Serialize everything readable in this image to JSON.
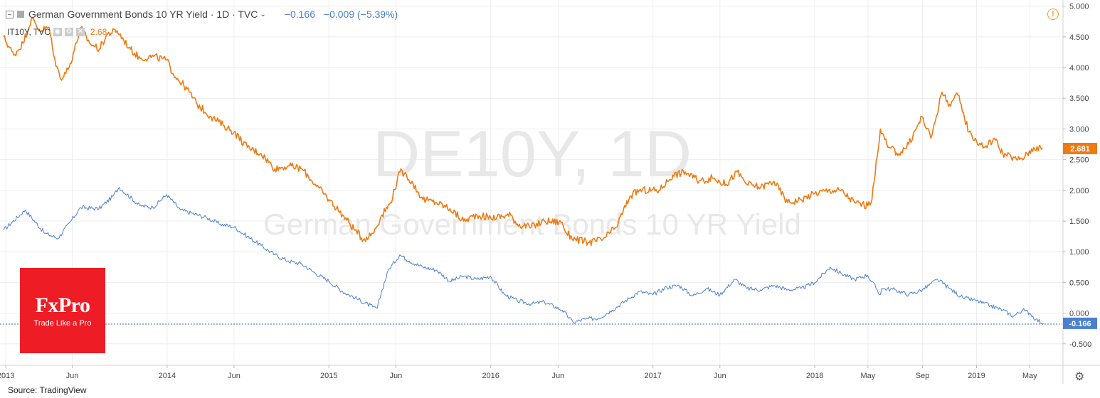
{
  "legend": {
    "main_title": "German Government Bonds 10 YR Yield · 1D · TVC",
    "main_close": "−0.166",
    "main_change": "−0.009 (−5.39%)",
    "compare_symbol": "IT10Y, TVC",
    "compare_value": "2.68"
  },
  "watermark": {
    "symbol": "DE10Y, 1D",
    "description": "German Government Bonds 10 YR Yield"
  },
  "logo": {
    "name": "FxPro",
    "tagline": "Trade Like a Pro"
  },
  "source": "Source: TradingView",
  "icons": {
    "warning": "warning-icon",
    "settings": "gear-icon",
    "collapse": "collapse-icon"
  },
  "colors": {
    "de10y": "#4a7fd4",
    "it10y": "#f07a12",
    "logo_bg": "#ee1c25"
  },
  "chart_data": {
    "type": "line",
    "x_ticks": [
      {
        "date": "2013-01-02",
        "label": "2013"
      },
      {
        "date": "2013-06-01",
        "label": "Jun"
      },
      {
        "date": "2014-01-01",
        "label": "2014"
      },
      {
        "date": "2014-06-01",
        "label": "Jun"
      },
      {
        "date": "2015-01-01",
        "label": "2015"
      },
      {
        "date": "2015-06-01",
        "label": "Jun"
      },
      {
        "date": "2016-01-01",
        "label": "2016"
      },
      {
        "date": "2016-06-01",
        "label": "Jun"
      },
      {
        "date": "2017-01-01",
        "label": "2017"
      },
      {
        "date": "2017-06-01",
        "label": "Jun"
      },
      {
        "date": "2018-01-01",
        "label": "2018"
      },
      {
        "date": "2018-05-01",
        "label": "May"
      },
      {
        "date": "2018-09-01",
        "label": "Sep"
      },
      {
        "date": "2019-01-01",
        "label": "2019"
      },
      {
        "date": "2019-05-01",
        "label": "May"
      }
    ],
    "y_ticks": [
      {
        "value": 5.0,
        "label": "5.000"
      },
      {
        "value": 4.5,
        "label": "4.500"
      },
      {
        "value": 4.0,
        "label": "4.000"
      },
      {
        "value": 3.5,
        "label": "3.500"
      },
      {
        "value": 3.0,
        "label": "3.000"
      },
      {
        "value": 2.5,
        "label": "2.500"
      },
      {
        "value": 2.0,
        "label": "2.000"
      },
      {
        "value": 1.5,
        "label": "1.500"
      },
      {
        "value": 1.0,
        "label": "1.000"
      },
      {
        "value": 0.5,
        "label": "0.500"
      },
      {
        "value": 0.0,
        "label": "0.000"
      },
      {
        "value": -0.5,
        "label": "-0.500"
      }
    ],
    "ylim": [
      -0.85,
      5.1
    ],
    "xlim": [
      "2012-12-20",
      "2019-07-15"
    ],
    "grid": true,
    "series": [
      {
        "name": "DE10Y",
        "color": "#4a7fd4",
        "last_value": -0.166,
        "last_label": "-0.166",
        "points": [
          [
            "2012-12-28",
            1.35
          ],
          [
            "2013-02-15",
            1.68
          ],
          [
            "2013-03-31",
            1.3
          ],
          [
            "2013-04-30",
            1.22
          ],
          [
            "2013-05-31",
            1.52
          ],
          [
            "2013-06-20",
            1.72
          ],
          [
            "2013-07-31",
            1.7
          ],
          [
            "2013-08-31",
            1.9
          ],
          [
            "2013-09-15",
            2.05
          ],
          [
            "2013-10-31",
            1.75
          ],
          [
            "2013-11-30",
            1.72
          ],
          [
            "2013-12-31",
            1.93
          ],
          [
            "2014-01-31",
            1.68
          ],
          [
            "2014-03-01",
            1.62
          ],
          [
            "2014-04-01",
            1.55
          ],
          [
            "2014-05-01",
            1.45
          ],
          [
            "2014-06-01",
            1.4
          ],
          [
            "2014-07-01",
            1.25
          ],
          [
            "2014-08-01",
            1.1
          ],
          [
            "2014-09-01",
            0.95
          ],
          [
            "2014-10-01",
            0.85
          ],
          [
            "2014-11-01",
            0.8
          ],
          [
            "2014-12-01",
            0.65
          ],
          [
            "2015-01-01",
            0.52
          ],
          [
            "2015-02-01",
            0.35
          ],
          [
            "2015-03-01",
            0.25
          ],
          [
            "2015-04-10",
            0.1
          ],
          [
            "2015-04-20",
            0.08
          ],
          [
            "2015-05-01",
            0.38
          ],
          [
            "2015-05-15",
            0.7
          ],
          [
            "2015-06-10",
            0.95
          ],
          [
            "2015-07-01",
            0.85
          ],
          [
            "2015-08-01",
            0.75
          ],
          [
            "2015-09-01",
            0.7
          ],
          [
            "2015-10-01",
            0.52
          ],
          [
            "2015-11-01",
            0.6
          ],
          [
            "2015-12-01",
            0.55
          ],
          [
            "2016-01-01",
            0.6
          ],
          [
            "2016-02-01",
            0.3
          ],
          [
            "2016-03-01",
            0.2
          ],
          [
            "2016-04-01",
            0.15
          ],
          [
            "2016-05-01",
            0.18
          ],
          [
            "2016-06-10",
            0.05
          ],
          [
            "2016-07-05",
            -0.15
          ],
          [
            "2016-08-01",
            -0.1
          ],
          [
            "2016-09-01",
            -0.08
          ],
          [
            "2016-10-01",
            0.05
          ],
          [
            "2016-11-10",
            0.25
          ],
          [
            "2016-12-01",
            0.35
          ],
          [
            "2017-01-01",
            0.3
          ],
          [
            "2017-02-01",
            0.42
          ],
          [
            "2017-03-01",
            0.45
          ],
          [
            "2017-04-01",
            0.28
          ],
          [
            "2017-05-01",
            0.4
          ],
          [
            "2017-06-01",
            0.3
          ],
          [
            "2017-07-05",
            0.55
          ],
          [
            "2017-08-01",
            0.4
          ],
          [
            "2017-09-01",
            0.38
          ],
          [
            "2017-10-01",
            0.45
          ],
          [
            "2017-11-01",
            0.38
          ],
          [
            "2017-12-01",
            0.4
          ],
          [
            "2018-01-01",
            0.5
          ],
          [
            "2018-02-05",
            0.75
          ],
          [
            "2018-03-01",
            0.65
          ],
          [
            "2018-04-01",
            0.55
          ],
          [
            "2018-04-30",
            0.62
          ],
          [
            "2018-05-29",
            0.3
          ],
          [
            "2018-06-01",
            0.4
          ],
          [
            "2018-07-01",
            0.38
          ],
          [
            "2018-08-01",
            0.3
          ],
          [
            "2018-09-01",
            0.38
          ],
          [
            "2018-10-05",
            0.55
          ],
          [
            "2018-11-01",
            0.4
          ],
          [
            "2018-12-01",
            0.25
          ],
          [
            "2019-01-01",
            0.2
          ],
          [
            "2019-02-01",
            0.12
          ],
          [
            "2019-03-01",
            0.05
          ],
          [
            "2019-03-25",
            -0.05
          ],
          [
            "2019-04-15",
            0.05
          ],
          [
            "2019-05-01",
            0.0
          ],
          [
            "2019-05-15",
            -0.1
          ],
          [
            "2019-06-01",
            -0.166
          ]
        ]
      },
      {
        "name": "IT10Y, TVC",
        "color": "#f07a12",
        "last_value": 2.681,
        "last_label": "2.681",
        "points": [
          [
            "2012-12-28",
            4.5
          ],
          [
            "2013-01-20",
            4.2
          ],
          [
            "2013-02-10",
            4.4
          ],
          [
            "2013-03-01",
            4.8
          ],
          [
            "2013-03-20",
            4.6
          ],
          [
            "2013-04-10",
            4.65
          ],
          [
            "2013-04-20",
            4.2
          ],
          [
            "2013-05-05",
            3.82
          ],
          [
            "2013-05-25",
            4.0
          ],
          [
            "2013-06-20",
            4.65
          ],
          [
            "2013-07-10",
            4.4
          ],
          [
            "2013-08-01",
            4.3
          ],
          [
            "2013-08-20",
            4.55
          ],
          [
            "2013-09-10",
            4.6
          ],
          [
            "2013-10-10",
            4.3
          ],
          [
            "2013-11-01",
            4.15
          ],
          [
            "2013-12-01",
            4.18
          ],
          [
            "2013-12-31",
            4.12
          ],
          [
            "2014-01-15",
            3.9
          ],
          [
            "2014-02-15",
            3.65
          ],
          [
            "2014-03-10",
            3.4
          ],
          [
            "2014-04-10",
            3.2
          ],
          [
            "2014-05-10",
            3.05
          ],
          [
            "2014-06-01",
            2.95
          ],
          [
            "2014-07-01",
            2.7
          ],
          [
            "2014-08-01",
            2.6
          ],
          [
            "2014-09-01",
            2.35
          ],
          [
            "2014-10-01",
            2.4
          ],
          [
            "2014-11-01",
            2.35
          ],
          [
            "2014-12-01",
            2.1
          ],
          [
            "2015-01-01",
            1.85
          ],
          [
            "2015-02-01",
            1.6
          ],
          [
            "2015-03-01",
            1.35
          ],
          [
            "2015-03-20",
            1.2
          ],
          [
            "2015-04-10",
            1.3
          ],
          [
            "2015-05-01",
            1.6
          ],
          [
            "2015-05-20",
            1.8
          ],
          [
            "2015-06-10",
            2.3
          ],
          [
            "2015-06-25",
            2.25
          ],
          [
            "2015-07-10",
            2.1
          ],
          [
            "2015-08-01",
            1.85
          ],
          [
            "2015-09-01",
            1.8
          ],
          [
            "2015-10-01",
            1.7
          ],
          [
            "2015-11-01",
            1.5
          ],
          [
            "2015-12-01",
            1.6
          ],
          [
            "2016-01-01",
            1.55
          ],
          [
            "2016-02-15",
            1.6
          ],
          [
            "2016-03-01",
            1.45
          ],
          [
            "2016-04-01",
            1.4
          ],
          [
            "2016-05-01",
            1.5
          ],
          [
            "2016-06-10",
            1.48
          ],
          [
            "2016-06-20",
            1.3
          ],
          [
            "2016-07-10",
            1.2
          ],
          [
            "2016-08-10",
            1.15
          ],
          [
            "2016-09-10",
            1.2
          ],
          [
            "2016-10-10",
            1.4
          ],
          [
            "2016-11-10",
            1.9
          ],
          [
            "2016-12-01",
            2.0
          ],
          [
            "2017-01-15",
            2.0
          ],
          [
            "2017-02-15",
            2.25
          ],
          [
            "2017-03-15",
            2.3
          ],
          [
            "2017-04-15",
            2.15
          ],
          [
            "2017-05-15",
            2.2
          ],
          [
            "2017-06-15",
            2.1
          ],
          [
            "2017-07-10",
            2.3
          ],
          [
            "2017-08-01",
            2.1
          ],
          [
            "2017-09-01",
            2.05
          ],
          [
            "2017-10-01",
            2.15
          ],
          [
            "2017-11-01",
            1.8
          ],
          [
            "2017-12-01",
            1.85
          ],
          [
            "2018-01-01",
            1.95
          ],
          [
            "2018-02-01",
            2.0
          ],
          [
            "2018-03-01",
            2.0
          ],
          [
            "2018-04-01",
            1.8
          ],
          [
            "2018-05-01",
            1.75
          ],
          [
            "2018-05-10",
            1.85
          ],
          [
            "2018-05-29",
            3.0
          ],
          [
            "2018-06-15",
            2.7
          ],
          [
            "2018-07-10",
            2.6
          ],
          [
            "2018-08-01",
            2.75
          ],
          [
            "2018-08-31",
            3.2
          ],
          [
            "2018-09-20",
            2.85
          ],
          [
            "2018-10-15",
            3.6
          ],
          [
            "2018-11-01",
            3.4
          ],
          [
            "2018-11-20",
            3.55
          ],
          [
            "2018-12-15",
            2.95
          ],
          [
            "2019-01-01",
            2.8
          ],
          [
            "2019-01-20",
            2.7
          ],
          [
            "2019-02-10",
            2.85
          ],
          [
            "2019-03-01",
            2.6
          ],
          [
            "2019-04-01",
            2.5
          ],
          [
            "2019-04-20",
            2.55
          ],
          [
            "2019-05-10",
            2.7
          ],
          [
            "2019-05-30",
            2.681
          ]
        ]
      }
    ]
  }
}
